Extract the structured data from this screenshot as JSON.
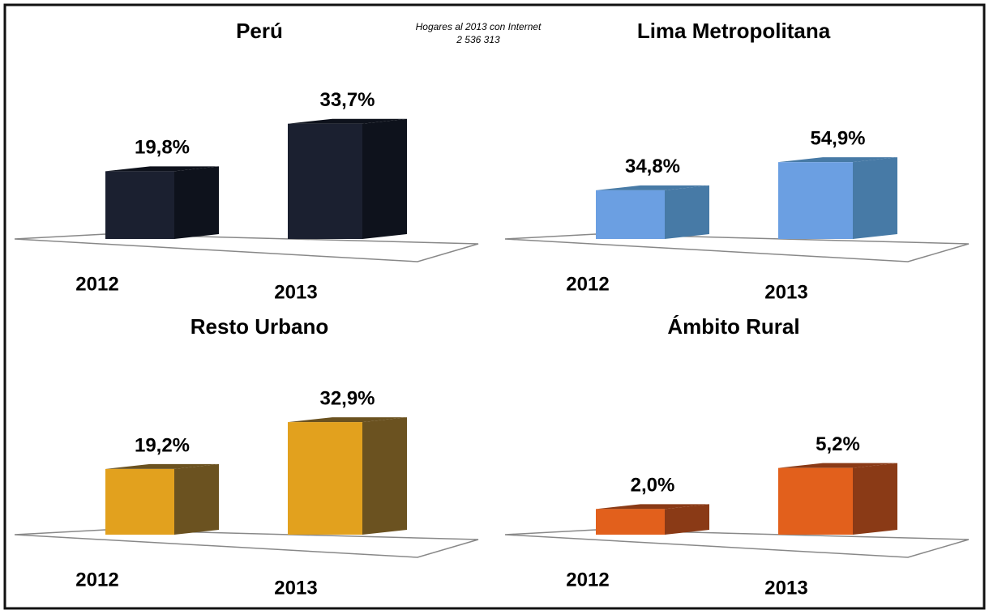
{
  "chart_data": [
    {
      "type": "bar",
      "title": "Perú",
      "annotation": [
        "Hogares al 2013 con Internet",
        "2 536 313"
      ],
      "categories": [
        "2012",
        "2013"
      ],
      "values": [
        19.8,
        33.7
      ],
      "value_labels": [
        "19,8%",
        "33,7%"
      ],
      "color": "#1b2030",
      "side_color": "#0e121c",
      "ylim": [
        0,
        45
      ]
    },
    {
      "type": "bar",
      "title": "Lima Metropolitana",
      "categories": [
        "2012",
        "2013"
      ],
      "values": [
        34.8,
        54.9
      ],
      "value_labels": [
        "34,8%",
        "54,9%"
      ],
      "color": "#6b9fe2",
      "side_color": "#477aa6",
      "ylim": [
        0,
        110
      ]
    },
    {
      "type": "bar",
      "title": "Resto Urbano",
      "categories": [
        "2012",
        "2013"
      ],
      "values": [
        19.2,
        32.9
      ],
      "value_labels": [
        "19,2%",
        "32,9%"
      ],
      "color": "#e2a11e",
      "side_color": "#6b5220",
      "ylim": [
        0,
        45
      ]
    },
    {
      "type": "bar",
      "title": "Ámbito Rural",
      "categories": [
        "2012",
        "2013"
      ],
      "values": [
        2.0,
        5.2
      ],
      "value_labels": [
        "2,0%",
        "5,2%"
      ],
      "color": "#e2601c",
      "side_color": "#8a3a16",
      "ylim": [
        0,
        12
      ]
    }
  ]
}
